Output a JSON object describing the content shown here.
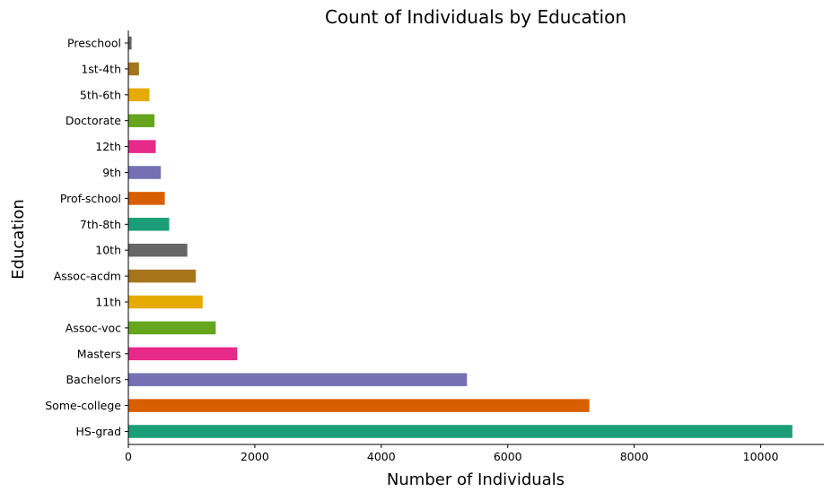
{
  "chart_data": {
    "type": "bar",
    "orientation": "horizontal",
    "title": "Count of Individuals by Education",
    "xlabel": "Number of Individuals",
    "ylabel": "Education",
    "xlim": [
      0,
      11000
    ],
    "xticks": [
      0,
      2000,
      4000,
      6000,
      8000,
      10000
    ],
    "xtick_labels": [
      "0",
      "2000",
      "4000",
      "6000",
      "8000",
      "10000"
    ],
    "grid": false,
    "legend": "none",
    "categories": [
      "HS-grad",
      "Some-college",
      "Bachelors",
      "Masters",
      "Assoc-voc",
      "11th",
      "Assoc-acdm",
      "10th",
      "7th-8th",
      "Prof-school",
      "9th",
      "12th",
      "Doctorate",
      "5th-6th",
      "1st-4th",
      "Preschool"
    ],
    "values": [
      10501,
      7291,
      5355,
      1723,
      1382,
      1175,
      1067,
      933,
      646,
      576,
      514,
      433,
      413,
      333,
      168,
      51
    ],
    "colors": [
      "#1b9e77",
      "#d95f02",
      "#7570b3",
      "#e7298a",
      "#66a61e",
      "#e6ab02",
      "#a6761d",
      "#666666",
      "#1b9e77",
      "#d95f02",
      "#7570b3",
      "#e7298a",
      "#66a61e",
      "#e6ab02",
      "#a6761d",
      "#666666"
    ]
  }
}
